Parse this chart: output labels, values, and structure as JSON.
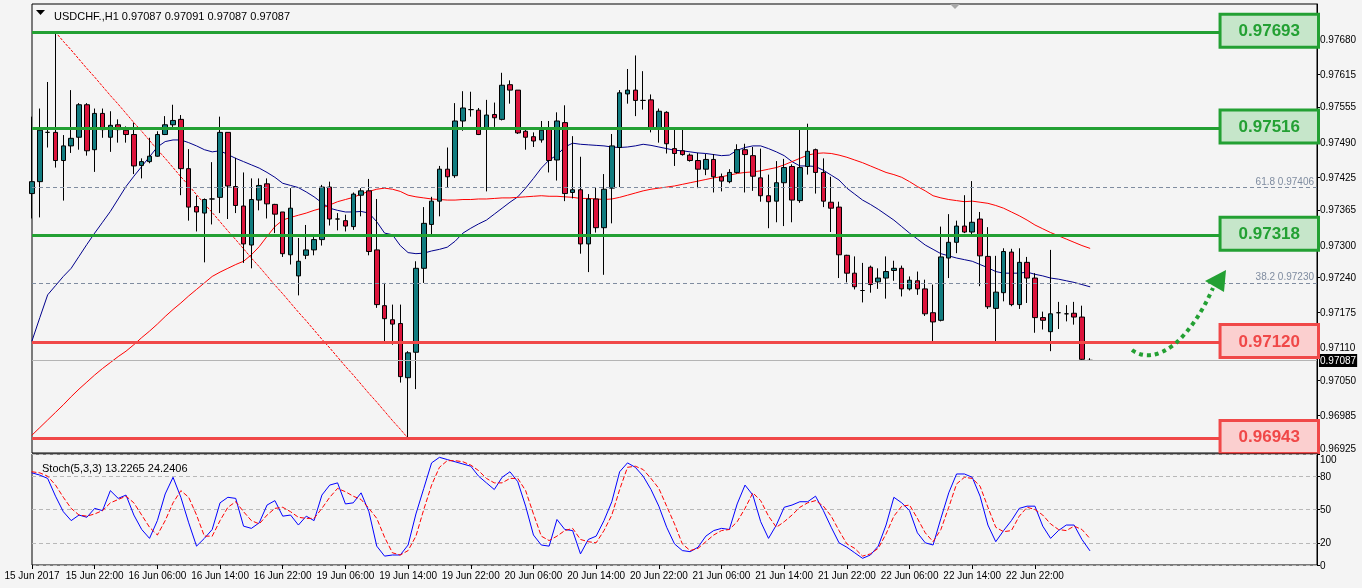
{
  "chart_data": [
    {
      "type": "candlestick",
      "title": "USDCHF.,H1 0.97087 0.97091 0.97087 0.97087",
      "categories": [
        null,
        null,
        null,
        null,
        null,
        null,
        null,
        null,
        null,
        null,
        null,
        null,
        null,
        null,
        null,
        null,
        null,
        null,
        null,
        null,
        null,
        null,
        null,
        null,
        null,
        null,
        null,
        null,
        null,
        null,
        null,
        null,
        null,
        null,
        null,
        null,
        null,
        null,
        null,
        null,
        null,
        null,
        null,
        null,
        null,
        null,
        null,
        null,
        null,
        null,
        null,
        null,
        null,
        null,
        null,
        null,
        null,
        null,
        null,
        null,
        null,
        null,
        null,
        null,
        null,
        null,
        null,
        null,
        null,
        null,
        null,
        null,
        null,
        null,
        null,
        null,
        null,
        null,
        null,
        null,
        null,
        null,
        null,
        null,
        null,
        null,
        null,
        null,
        null,
        null,
        null,
        null,
        null,
        null,
        null,
        null,
        null,
        null,
        null,
        null,
        null,
        null,
        null,
        null,
        null,
        null,
        null,
        null,
        null,
        null,
        null,
        null,
        null,
        null,
        null,
        null,
        null,
        null,
        null,
        null,
        null,
        null,
        null,
        null,
        null,
        null,
        null,
        null,
        null,
        null,
        null,
        null,
        null,
        null,
        null,
        null
      ],
      "ohlc": [
        [
          0.97395,
          0.97537,
          0.97349,
          0.97417
        ],
        [
          0.97417,
          0.97552,
          0.97351,
          0.97512
        ],
        [
          0.97508,
          0.97601,
          0.9748,
          0.97508
        ],
        [
          0.97508,
          0.97693,
          0.97443,
          0.97456
        ],
        [
          0.97456,
          0.97503,
          0.97382,
          0.97483
        ],
        [
          0.97483,
          0.97586,
          0.9747,
          0.97497
        ],
        [
          0.97499,
          0.97562,
          0.97476,
          0.97559
        ],
        [
          0.97559,
          0.97562,
          0.97465,
          0.97474
        ],
        [
          0.97476,
          0.97552,
          0.97435,
          0.97543
        ],
        [
          0.97543,
          0.97552,
          0.97498,
          0.97513
        ],
        [
          0.97499,
          0.97547,
          0.97472,
          0.97521
        ],
        [
          0.97522,
          0.97532,
          0.97489,
          0.97513
        ],
        [
          0.97512,
          0.97519,
          0.97489,
          0.97504
        ],
        [
          0.97504,
          0.97526,
          0.97431,
          0.97446
        ],
        [
          0.97447,
          0.9746,
          0.97423,
          0.97454
        ],
        [
          0.97454,
          0.97498,
          0.97451,
          0.97464
        ],
        [
          0.97464,
          0.9751,
          0.97463,
          0.97504
        ],
        [
          0.97504,
          0.97538,
          0.97503,
          0.97522
        ],
        [
          0.97522,
          0.97559,
          0.97518,
          0.9753
        ],
        [
          0.97532,
          0.9754,
          0.97392,
          0.97441
        ],
        [
          0.97441,
          0.97477,
          0.97345,
          0.9737
        ],
        [
          0.97371,
          0.97391,
          0.97325,
          0.97361
        ],
        [
          0.97359,
          0.97386,
          0.97268,
          0.97384
        ],
        [
          0.97385,
          0.97453,
          0.97338,
          0.97385
        ],
        [
          0.97388,
          0.97537,
          0.97359,
          0.97508
        ],
        [
          0.97508,
          0.97508,
          0.97348,
          0.97409
        ],
        [
          0.97408,
          0.97461,
          0.97359,
          0.97373
        ],
        [
          0.97372,
          0.97434,
          0.97267,
          0.97302
        ],
        [
          0.973,
          0.97423,
          0.97257,
          0.97384
        ],
        [
          0.97383,
          0.97423,
          0.97364,
          0.9741
        ],
        [
          0.97413,
          0.97423,
          0.97349,
          0.97376
        ],
        [
          0.97375,
          0.97376,
          0.97322,
          0.97357
        ],
        [
          0.97361,
          0.97361,
          0.97278,
          0.97284
        ],
        [
          0.97282,
          0.97405,
          0.97264,
          0.97368
        ],
        [
          0.97243,
          0.97313,
          0.97207,
          0.9727
        ],
        [
          0.97281,
          0.97337,
          0.97274,
          0.97291
        ],
        [
          0.97291,
          0.97315,
          0.97281,
          0.9731
        ],
        [
          0.9731,
          0.97411,
          0.97299,
          0.97407
        ],
        [
          0.97407,
          0.97417,
          0.97336,
          0.97348
        ],
        [
          0.97348,
          0.97359,
          0.97327,
          0.97348
        ],
        [
          0.97345,
          0.97356,
          0.97325,
          0.97335
        ],
        [
          0.97334,
          0.97397,
          0.97328,
          0.97394
        ],
        [
          0.97392,
          0.97405,
          0.97353,
          0.974
        ],
        [
          0.974,
          0.97422,
          0.97281,
          0.97288
        ],
        [
          0.97291,
          0.97385,
          0.97184,
          0.9719
        ],
        [
          0.97188,
          0.9723,
          0.97121,
          0.97164
        ],
        [
          0.97162,
          0.9719,
          0.97116,
          0.97154
        ],
        [
          0.97155,
          0.9719,
          0.97046,
          0.97057
        ],
        [
          0.97055,
          0.97104,
          0.96943,
          0.97101
        ],
        [
          0.97102,
          0.9727,
          0.97034,
          0.97257
        ],
        [
          0.97257,
          0.9737,
          0.9723,
          0.9734
        ],
        [
          0.97338,
          0.97389,
          0.97319,
          0.97381
        ],
        [
          0.97381,
          0.97446,
          0.97353,
          0.9744
        ],
        [
          0.9744,
          0.9748,
          0.97406,
          0.97426
        ],
        [
          0.97428,
          0.97562,
          0.97424,
          0.97529
        ],
        [
          0.97529,
          0.97584,
          0.97511,
          0.97553
        ],
        [
          0.9755,
          0.97583,
          0.97537,
          0.9755
        ],
        [
          0.97549,
          0.97553,
          0.97503,
          0.97504
        ],
        [
          0.97515,
          0.97568,
          0.97399,
          0.9754
        ],
        [
          0.97541,
          0.97563,
          0.97518,
          0.97535
        ],
        [
          0.97532,
          0.97618,
          0.9753,
          0.97595
        ],
        [
          0.97596,
          0.97604,
          0.97561,
          0.97586
        ],
        [
          0.97586,
          0.97586,
          0.97505,
          0.97507
        ],
        [
          0.9751,
          0.97517,
          0.97476,
          0.97499
        ],
        [
          0.975,
          0.97508,
          0.97481,
          0.97492
        ],
        [
          0.97494,
          0.97529,
          0.97489,
          0.97512
        ],
        [
          0.97514,
          0.97529,
          0.97434,
          0.97456
        ],
        [
          0.97457,
          0.97545,
          0.97419,
          0.97529
        ],
        [
          0.97526,
          0.97558,
          0.97381,
          0.97395
        ],
        [
          0.97397,
          0.97501,
          0.97386,
          0.97402
        ],
        [
          0.97402,
          0.97463,
          0.97284,
          0.97302
        ],
        [
          0.97302,
          0.97394,
          0.9725,
          0.97385
        ],
        [
          0.97385,
          0.97406,
          0.97323,
          0.97332
        ],
        [
          0.97332,
          0.97431,
          0.97245,
          0.97403
        ],
        [
          0.97405,
          0.97505,
          0.9734,
          0.97483
        ],
        [
          0.9748,
          0.97586,
          0.97407,
          0.97581
        ],
        [
          0.97579,
          0.97625,
          0.97561,
          0.97586
        ],
        [
          0.97586,
          0.9765,
          0.97538,
          0.97567
        ],
        [
          0.97567,
          0.97621,
          0.9755,
          0.97567
        ],
        [
          0.97568,
          0.97578,
          0.97508,
          0.97514
        ],
        [
          0.97514,
          0.97552,
          0.97489,
          0.97547
        ],
        [
          0.97545,
          0.97547,
          0.97469,
          0.97487
        ],
        [
          0.97478,
          0.97516,
          0.97446,
          0.97469
        ],
        [
          0.97474,
          0.97514,
          0.97465,
          0.97467
        ],
        [
          0.97466,
          0.97469,
          0.97454,
          0.97456
        ],
        [
          0.97456,
          0.9747,
          0.97405,
          0.9744
        ],
        [
          0.9744,
          0.97468,
          0.97429,
          0.97458
        ],
        [
          0.97458,
          0.97468,
          0.97397,
          0.97426
        ],
        [
          0.97426,
          0.97432,
          0.97399,
          0.97418
        ],
        [
          0.97417,
          0.9744,
          0.97414,
          0.97434
        ],
        [
          0.97434,
          0.97486,
          0.97432,
          0.97476
        ],
        [
          0.97476,
          0.97487,
          0.97397,
          0.97467
        ],
        [
          0.97465,
          0.97481,
          0.974,
          0.97427
        ],
        [
          0.97424,
          0.97478,
          0.9738,
          0.97391
        ],
        [
          0.97391,
          0.9743,
          0.97331,
          0.9738
        ],
        [
          0.97381,
          0.97455,
          0.97342,
          0.97415
        ],
        [
          0.97415,
          0.97459,
          0.97335,
          0.97443
        ],
        [
          0.97445,
          0.97449,
          0.97342,
          0.97383
        ],
        [
          0.97382,
          0.97515,
          0.97378,
          0.97443
        ],
        [
          0.97445,
          0.97524,
          0.9743,
          0.97473
        ],
        [
          0.97476,
          0.97478,
          0.97395,
          0.97434
        ],
        [
          0.97434,
          0.9746,
          0.9737,
          0.97381
        ],
        [
          0.97379,
          0.97426,
          0.97324,
          0.97368
        ],
        [
          0.9737,
          0.9738,
          0.97239,
          0.97282
        ],
        [
          0.97281,
          0.97282,
          0.97231,
          0.97248
        ],
        [
          0.97248,
          0.97279,
          0.97218,
          0.97223
        ],
        [
          0.97216,
          0.97267,
          0.97194,
          0.97216
        ],
        [
          0.97259,
          0.97262,
          0.97212,
          0.97227
        ],
        [
          0.97232,
          0.97257,
          0.97219,
          0.97239
        ],
        [
          0.97239,
          0.97279,
          0.97201,
          0.97251
        ],
        [
          0.97253,
          0.97271,
          0.97234,
          0.97257
        ],
        [
          0.97257,
          0.97262,
          0.97205,
          0.97219
        ],
        [
          0.97219,
          0.97242,
          0.97216,
          0.97235
        ],
        [
          0.97234,
          0.97251,
          0.97208,
          0.97219
        ],
        [
          0.97219,
          0.97236,
          0.97169,
          0.97173
        ],
        [
          0.97175,
          0.97227,
          0.97118,
          0.97158
        ],
        [
          0.97161,
          0.97334,
          0.97159,
          0.97278
        ],
        [
          0.97276,
          0.97357,
          0.97239,
          0.97305
        ],
        [
          0.97305,
          0.97345,
          0.97285,
          0.97335
        ],
        [
          0.97335,
          0.97392,
          0.97322,
          0.97324
        ],
        [
          0.97324,
          0.97418,
          0.97317,
          0.97342
        ],
        [
          0.97348,
          0.97361,
          0.97224,
          0.9728
        ],
        [
          0.97279,
          0.97333,
          0.97182,
          0.97186
        ],
        [
          0.97183,
          0.9728,
          0.97121,
          0.97213
        ],
        [
          0.97212,
          0.97294,
          0.97196,
          0.97288
        ],
        [
          0.97287,
          0.97293,
          0.97187,
          0.9719
        ],
        [
          0.9719,
          0.97294,
          0.97182,
          0.97268
        ],
        [
          0.97268,
          0.97278,
          0.97193,
          0.97239
        ],
        [
          0.97239,
          0.97248,
          0.97138,
          0.97166
        ],
        [
          0.97166,
          0.97177,
          0.97144,
          0.97161
        ],
        [
          0.9714,
          0.97291,
          0.97104,
          0.97173
        ],
        [
          0.97175,
          0.97195,
          0.97145,
          0.97175
        ],
        [
          0.97173,
          0.97189,
          0.97159,
          0.97173
        ],
        [
          0.97174,
          0.97195,
          0.97153,
          0.97167
        ],
        [
          0.97167,
          0.97188,
          0.97087,
          0.97089
        ],
        [
          0.97087,
          0.97091,
          0.97087,
          0.97087
        ]
      ],
      "colors": [
        "#127c80",
        "#127c80",
        "#000000",
        "#dc143c",
        "#127c80",
        "#127c80",
        "#127c80",
        "#dc143c",
        "#127c80",
        "#dc143c",
        "#127c80",
        "#dc143c",
        "#dc143c",
        "#dc143c",
        "#127c80",
        "#127c80",
        "#127c80",
        "#127c80",
        "#127c80",
        "#dc143c",
        "#dc143c",
        "#dc143c",
        "#127c80",
        "#000000",
        "#127c80",
        "#dc143c",
        "#dc143c",
        "#dc143c",
        "#127c80",
        "#127c80",
        "#dc143c",
        "#dc143c",
        "#dc143c",
        "#127c80",
        "#127c80",
        "#127c80",
        "#127c80",
        "#127c80",
        "#dc143c",
        "#000000",
        "#dc143c",
        "#127c80",
        "#127c80",
        "#dc143c",
        "#dc143c",
        "#dc143c",
        "#dc143c",
        "#dc143c",
        "#127c80",
        "#127c80",
        "#127c80",
        "#127c80",
        "#127c80",
        "#dc143c",
        "#127c80",
        "#127c80",
        "#000000",
        "#dc143c",
        "#127c80",
        "#dc143c",
        "#127c80",
        "#dc143c",
        "#dc143c",
        "#dc143c",
        "#dc143c",
        "#127c80",
        "#dc143c",
        "#127c80",
        "#dc143c",
        "#127c80",
        "#dc143c",
        "#127c80",
        "#dc143c",
        "#127c80",
        "#127c80",
        "#127c80",
        "#127c80",
        "#dc143c",
        "#000000",
        "#dc143c",
        "#127c80",
        "#dc143c",
        "#dc143c",
        "#dc143c",
        "#dc143c",
        "#dc143c",
        "#127c80",
        "#dc143c",
        "#dc143c",
        "#127c80",
        "#127c80",
        "#dc143c",
        "#dc143c",
        "#dc143c",
        "#dc143c",
        "#127c80",
        "#127c80",
        "#dc143c",
        "#127c80",
        "#127c80",
        "#dc143c",
        "#dc143c",
        "#dc143c",
        "#dc143c",
        "#dc143c",
        "#dc143c",
        "#000000",
        "#dc143c",
        "#127c80",
        "#127c80",
        "#127c80",
        "#dc143c",
        "#127c80",
        "#dc143c",
        "#dc143c",
        "#dc143c",
        "#127c80",
        "#127c80",
        "#127c80",
        "#dc143c",
        "#127c80",
        "#dc143c",
        "#dc143c",
        "#127c80",
        "#127c80",
        "#dc143c",
        "#127c80",
        "#dc143c",
        "#dc143c",
        "#dc143c",
        "#127c80",
        "#000000",
        "#000000",
        "#dc143c",
        "#dc143c",
        "#000000"
      ],
      "series": [
        {
          "type": "line",
          "color": "#00008b",
          "values": [
            0.97123,
            0.97166,
            0.97208,
            0.97225,
            0.97242,
            0.97257,
            0.97279,
            0.97301,
            0.97322,
            0.97342,
            0.97362,
            0.97385,
            0.97408,
            0.97427,
            0.97445,
            0.97463,
            0.97481,
            0.97491,
            0.97494,
            0.97494,
            0.97489,
            0.97483,
            0.97476,
            0.97472,
            0.97474,
            0.97467,
            0.9746,
            0.97454,
            0.97448,
            0.97442,
            0.97434,
            0.97425,
            0.97414,
            0.9741,
            0.97406,
            0.97398,
            0.97389,
            0.97378,
            0.97368,
            0.97364,
            0.97361,
            0.97361,
            0.97362,
            0.97359,
            0.97343,
            0.97322,
            0.97319,
            0.97299,
            0.97286,
            0.97284,
            0.97285,
            0.97289,
            0.97292,
            0.97296,
            0.97307,
            0.97322,
            0.97331,
            0.97339,
            0.97346,
            0.97357,
            0.97368,
            0.97379,
            0.97389,
            0.97405,
            0.97423,
            0.97442,
            0.97457,
            0.97466,
            0.97481,
            0.97488,
            0.97486,
            0.97485,
            0.97484,
            0.97483,
            0.97481,
            0.9748,
            0.97481,
            0.97483,
            0.97486,
            0.97484,
            0.97481,
            0.97478,
            0.97475,
            0.97474,
            0.97472,
            0.9747,
            0.97469,
            0.97467,
            0.97465,
            0.97466,
            0.97475,
            0.9748,
            0.97483,
            0.97483,
            0.97478,
            0.97472,
            0.97465,
            0.97454,
            0.97446,
            0.97446,
            0.97445,
            0.97438,
            0.97429,
            0.9742,
            0.97405,
            0.97394,
            0.97383,
            0.97375,
            0.97366,
            0.97356,
            0.97346,
            0.97334,
            0.97322,
            0.97311,
            0.973,
            0.97292,
            0.97284,
            0.9728,
            0.97276,
            0.97273,
            0.9727,
            0.97264,
            0.97258,
            0.97251,
            0.97248,
            0.97248,
            0.97248,
            0.9725,
            0.97246,
            0.97243,
            0.97239,
            0.97237,
            0.97234,
            0.97231,
            0.97227,
            0.97223
          ]
        },
        {
          "type": "line",
          "color": "#ff0000",
          "values": [
            0.96949,
            0.96963,
            0.96977,
            0.96991,
            0.97005,
            0.9702,
            0.97034,
            0.97047,
            0.9706,
            0.97072,
            0.97083,
            0.97094,
            0.97104,
            0.97116,
            0.97129,
            0.97141,
            0.97154,
            0.97168,
            0.97181,
            0.97193,
            0.97206,
            0.97218,
            0.9723,
            0.97242,
            0.9725,
            0.97257,
            0.97264,
            0.9727,
            0.97282,
            0.97297,
            0.97316,
            0.97334,
            0.97346,
            0.97351,
            0.97355,
            0.97359,
            0.97364,
            0.97368,
            0.97374,
            0.9738,
            0.97384,
            0.97388,
            0.97394,
            0.97399,
            0.97403,
            0.97405,
            0.97403,
            0.97399,
            0.97392,
            0.97389,
            0.97387,
            0.97385,
            0.97384,
            0.97383,
            0.97383,
            0.97384,
            0.97384,
            0.97385,
            0.97385,
            0.97386,
            0.97387,
            0.97387,
            0.97388,
            0.97389,
            0.9739,
            0.97391,
            0.9739,
            0.9739,
            0.97389,
            0.97388,
            0.97386,
            0.97386,
            0.97385,
            0.97384,
            0.97385,
            0.97388,
            0.97392,
            0.97396,
            0.974,
            0.97403,
            0.97405,
            0.97407,
            0.97409,
            0.97412,
            0.97415,
            0.97418,
            0.97421,
            0.97424,
            0.97426,
            0.97429,
            0.97432,
            0.97434,
            0.97435,
            0.97437,
            0.9744,
            0.97443,
            0.97448,
            0.97454,
            0.9746,
            0.97466,
            0.97469,
            0.9747,
            0.97469,
            0.97466,
            0.97462,
            0.97457,
            0.97452,
            0.97446,
            0.9744,
            0.97434,
            0.9743,
            0.97425,
            0.97417,
            0.97408,
            0.974,
            0.97391,
            0.97387,
            0.97384,
            0.97382,
            0.9738,
            0.97381,
            0.97379,
            0.97377,
            0.97373,
            0.97368,
            0.97361,
            0.97354,
            0.97346,
            0.97337,
            0.9733,
            0.97323,
            0.97317,
            0.97311,
            0.97305,
            0.97299,
            0.97294
          ]
        },
        {
          "type": "line",
          "color": "#ff0000",
          "line_style": "dotted",
          "values": [
            null,
            null,
            null,
            0.97693,
            0.97676,
            0.9766,
            0.97643,
            0.97626,
            0.9761,
            0.97593,
            0.97576,
            0.9756,
            0.97543,
            0.97526,
            0.9751,
            0.97493,
            0.97476,
            0.9746,
            0.97443,
            0.97426,
            0.9741,
            0.97393,
            0.97376,
            0.9736,
            0.97343,
            0.97326,
            0.9731,
            0.97293,
            0.97276,
            0.9726,
            0.97243,
            0.97226,
            0.9721,
            0.97193,
            0.97176,
            0.9716,
            0.97143,
            0.97126,
            0.9711,
            0.97093,
            0.97076,
            0.9706,
            0.97043,
            0.97026,
            0.9701,
            0.96993,
            0.96976,
            0.9696,
            0.96943,
            null,
            null,
            null,
            null,
            null,
            null,
            null,
            null,
            null,
            null,
            null,
            null,
            null,
            null,
            null,
            null,
            null,
            null,
            null,
            null,
            null,
            null,
            null,
            null,
            null,
            null,
            null,
            null,
            null,
            null,
            null,
            null,
            null,
            null,
            null,
            null,
            null,
            null,
            null,
            null,
            null,
            null,
            null,
            null,
            null,
            null,
            null,
            null,
            null,
            null,
            null,
            null,
            null,
            null,
            null,
            null,
            null,
            null,
            null,
            null,
            null,
            null,
            null,
            null,
            null,
            null,
            null,
            null,
            null,
            null,
            null,
            null,
            null,
            null,
            null,
            null,
            null,
            null,
            null,
            null,
            null,
            null,
            null,
            null,
            null,
            null,
            null
          ]
        }
      ],
      "ref_lines": [
        {
          "axis": "y",
          "value": 0.97406,
          "label": "61.8 0.97406",
          "color": "#7f8ca0",
          "line_style": "dashed"
        },
        {
          "axis": "y",
          "value": 0.9723,
          "label": "38.2 0.97230",
          "color": "#7f8ca0",
          "line_style": "dashed"
        },
        {
          "axis": "y",
          "value": 0.97087,
          "label": "0.97087",
          "color": "#b4b4b4"
        },
        {
          "axis": "y",
          "value": 0.97693,
          "label": "0.97693",
          "color": "#23a033"
        },
        {
          "axis": "y",
          "value": 0.97516,
          "label": "0.97516",
          "color": "#23a033"
        },
        {
          "axis": "y",
          "value": 0.97318,
          "label": "0.97318",
          "color": "#23a033"
        },
        {
          "axis": "y",
          "value": 0.9712,
          "label": "0.97120",
          "color": "#f04848"
        },
        {
          "axis": "y",
          "value": 0.96943,
          "label": "0.96943",
          "color": "#f04848"
        }
      ],
      "ylim": [
        0.96916,
        0.97745
      ],
      "yticks": [
        0.96925,
        0.96985,
        {
          "value": 0.9705,
          "label": "0.97050"
        },
        {
          "value": 0.9711,
          "label": "0.97110"
        },
        0.97175,
        {
          "value": 0.9724,
          "label": "0.97240"
        },
        {
          "value": 0.973,
          "label": "0.97300"
        },
        0.97365,
        0.97425,
        {
          "value": 0.9749,
          "label": "0.97490"
        },
        0.97555,
        0.97615,
        {
          "value": 0.9768,
          "label": "0.97680"
        }
      ],
      "tick_labels": "y",
      "marker": "none"
    },
    {
      "type": "line",
      "title": "Stoch(5,3,3) 13.2265 24.2406",
      "categories": [
        "15 Jun 2017",
        null,
        null,
        null,
        null,
        null,
        null,
        null,
        "15 Jun 22:00",
        null,
        null,
        null,
        null,
        null,
        null,
        null,
        "16 Jun 06:00",
        null,
        null,
        null,
        null,
        null,
        null,
        null,
        "16 Jun 14:00",
        null,
        null,
        null,
        null,
        null,
        null,
        null,
        "16 Jun 22:00",
        null,
        null,
        null,
        null,
        null,
        null,
        null,
        "19 Jun 06:00",
        null,
        null,
        null,
        null,
        null,
        null,
        null,
        "19 Jun 14:00",
        null,
        null,
        null,
        null,
        null,
        null,
        null,
        "19 Jun 22:00",
        null,
        null,
        null,
        null,
        null,
        null,
        null,
        "20 Jun 06:00",
        null,
        null,
        null,
        null,
        null,
        null,
        null,
        "20 Jun 14:00",
        null,
        null,
        null,
        null,
        null,
        null,
        null,
        "20 Jun 22:00",
        null,
        null,
        null,
        null,
        null,
        null,
        null,
        "21 Jun 06:00",
        null,
        null,
        null,
        null,
        null,
        null,
        null,
        "21 Jun 14:00",
        null,
        null,
        null,
        null,
        null,
        null,
        null,
        "21 Jun 22:00",
        null,
        null,
        null,
        null,
        null,
        null,
        null,
        "22 Jun 06:00",
        null,
        null,
        null,
        null,
        null,
        null,
        null,
        "22 Jun 14:00",
        null,
        null,
        null,
        null,
        null,
        null,
        null,
        "22 Jun 22:00",
        null,
        null,
        null,
        null,
        null,
        null,
        null
      ],
      "series": [
        {
          "color": "#0000ff",
          "values": [
            83,
            81,
            78,
            62,
            48,
            40,
            45,
            43,
            51,
            49,
            67,
            60,
            63,
            45,
            32,
            24,
            40,
            64,
            79,
            61,
            38,
            17,
            24,
            32,
            56,
            61,
            60,
            35,
            33,
            38,
            54,
            58,
            44,
            45,
            36,
            44,
            40,
            63,
            72,
            74,
            55,
            56,
            65,
            48,
            17,
            8,
            9,
            9,
            18,
            46,
            69,
            92,
            97,
            95,
            93,
            91,
            89,
            80,
            74,
            68,
            79,
            84,
            75,
            53,
            27,
            18,
            17,
            41,
            32,
            31,
            10,
            23,
            26,
            40,
            57,
            84,
            92,
            88,
            80,
            68,
            53,
            34,
            19,
            13,
            12,
            16,
            26,
            31,
            33,
            32,
            55,
            72,
            63,
            39,
            24,
            36,
            52,
            54,
            57,
            57,
            62,
            49,
            34,
            20,
            16,
            11,
            6,
            9,
            17,
            36,
            61,
            56,
            49,
            29,
            20,
            18,
            42,
            65,
            82,
            82,
            79,
            62,
            36,
            21,
            31,
            40,
            51,
            53,
            53,
            35,
            24,
            31,
            36,
            36,
            23,
            13
          ]
        },
        {
          "color": "#ff0000",
          "line_style": "dashed",
          "values": [
            84,
            83,
            80,
            72,
            61,
            51,
            45,
            44,
            46,
            49,
            56,
            59,
            62,
            56,
            45,
            34,
            27,
            40,
            56,
            67,
            61,
            45,
            26,
            26,
            40,
            52,
            57,
            48,
            40,
            37,
            45,
            51,
            52,
            48,
            43,
            42,
            42,
            51,
            61,
            69,
            66,
            62,
            59,
            51,
            42,
            25,
            11,
            9,
            13,
            26,
            50,
            72,
            88,
            94,
            94,
            93,
            90,
            85,
            78,
            74,
            74,
            78,
            78,
            67,
            46,
            26,
            22,
            26,
            31,
            33,
            23,
            21,
            20,
            31,
            45,
            68,
            88,
            89,
            86,
            78,
            69,
            53,
            37,
            19,
            13,
            15,
            21,
            27,
            31,
            32,
            39,
            51,
            65,
            58,
            44,
            34,
            39,
            45,
            52,
            56,
            58,
            53,
            44,
            31,
            19,
            15,
            8,
            10,
            15,
            28,
            44,
            53,
            54,
            42,
            29,
            21,
            32,
            52,
            73,
            79,
            78,
            71,
            52,
            34,
            30,
            31,
            44,
            52,
            50,
            45,
            37,
            32,
            31,
            35,
            32,
            24
          ]
        }
      ],
      "ylim": [
        0,
        100
      ],
      "yticks": [
        0,
        20,
        50,
        80,
        100
      ],
      "grid": "y",
      "marker": "none"
    }
  ]
}
